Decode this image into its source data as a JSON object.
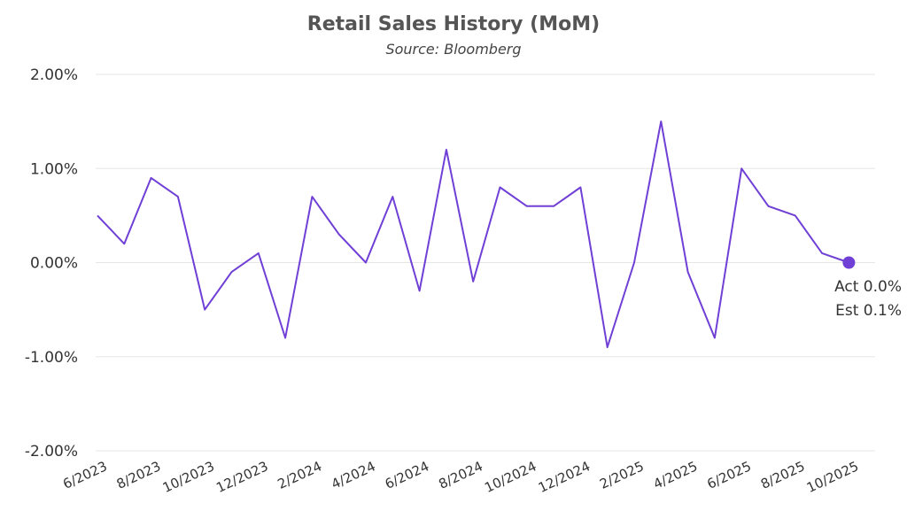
{
  "chart_data": {
    "type": "line",
    "title": "Retail Sales History (MoM)",
    "subtitle": "Source: Bloomberg",
    "xlabel": "",
    "ylabel": "",
    "ylim": [
      -2.0,
      2.0
    ],
    "y_ticks": [
      2.0,
      1.0,
      0.0,
      -1.0,
      -2.0
    ],
    "y_tick_labels": [
      "2.00%",
      "1.00%",
      "0.00%",
      "-1.00%",
      "-2.00%"
    ],
    "x_tick_labels": [
      "6/2023",
      "8/2023",
      "10/2023",
      "12/2023",
      "2/2024",
      "4/2024",
      "6/2024",
      "8/2024",
      "10/2024",
      "12/2024",
      "2/2025",
      "4/2025",
      "6/2025",
      "8/2025",
      "10/2025"
    ],
    "x": [
      "6/2023",
      "7/2023",
      "8/2023",
      "9/2023",
      "10/2023",
      "11/2023",
      "12/2023",
      "1/2024",
      "2/2024",
      "3/2024",
      "4/2024",
      "5/2024",
      "6/2024",
      "7/2024",
      "8/2024",
      "9/2024",
      "10/2024",
      "11/2024",
      "12/2024",
      "1/2025",
      "2/2025",
      "3/2025",
      "4/2025",
      "5/2025",
      "6/2025",
      "7/2025",
      "8/2025",
      "9/2025",
      "10/2025"
    ],
    "series": [
      {
        "values": [
          0.5,
          0.2,
          0.9,
          0.7,
          -0.5,
          -0.1,
          0.1,
          -0.8,
          0.7,
          0.3,
          0.0,
          0.7,
          -0.3,
          1.2,
          -0.2,
          0.8,
          0.6,
          0.6,
          0.8,
          -0.9,
          0.0,
          1.5,
          -0.1,
          -0.8,
          1.0,
          0.6,
          0.5,
          0.1,
          0.0
        ],
        "color": "#6f3fd6"
      }
    ],
    "grid": true,
    "legend": "none",
    "annotation": {
      "lines": [
        "Act 0.0%",
        "Est 0.1%"
      ]
    }
  }
}
